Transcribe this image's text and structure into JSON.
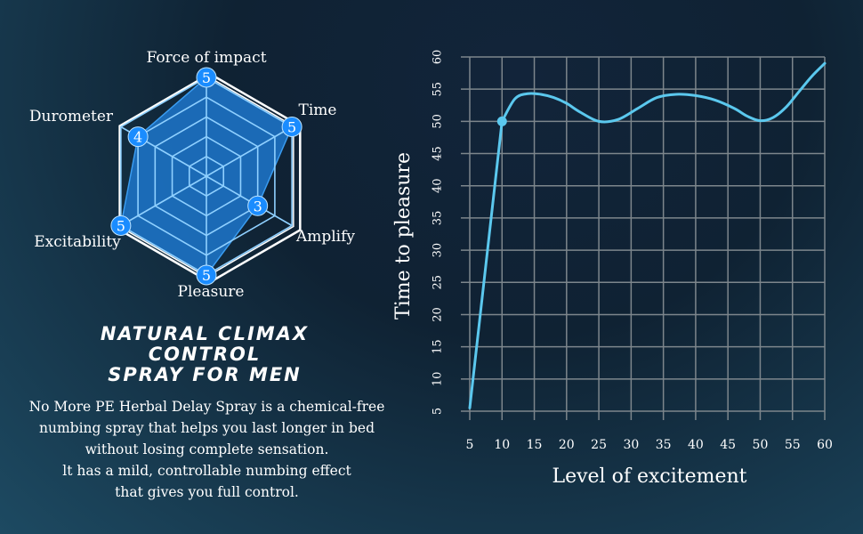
{
  "heading": {
    "line1": "NATURAL CLIMAX",
    "line2": "CONTROL",
    "line3": "SPRAY FOR MEN"
  },
  "description": {
    "line1": "No More PE Herbal Delay Spray is a chemical-free",
    "line2": "numbing spray that helps you last longer in bed",
    "line3": "without losing complete sensation.",
    "line4": "lt has a mild, controllable numbing effect",
    "line5": "that gives you full control."
  },
  "colors": {
    "radar_fill": "#1d72c4",
    "radar_grid": "#8fd0ff",
    "radar_badge": "#1a8cff",
    "line": "#5bc8ee",
    "grid": "#7d868c"
  },
  "chart_data": [
    {
      "type": "radar",
      "axes": [
        "Force of impact",
        "Time",
        "Amplify",
        "Pleasure",
        "Excitability",
        "Durometer"
      ],
      "values": [
        5,
        5,
        3,
        5,
        5,
        4
      ],
      "max": 5
    },
    {
      "type": "line",
      "xlabel": "Level of excitement",
      "ylabel": "Time to pleasure",
      "xlim": [
        5,
        60
      ],
      "ylim": [
        5,
        60
      ],
      "xticks": [
        5,
        10,
        15,
        20,
        25,
        30,
        35,
        40,
        45,
        50,
        55,
        60
      ],
      "yticks": [
        5,
        10,
        15,
        20,
        25,
        30,
        35,
        40,
        45,
        50,
        55,
        60
      ],
      "grid": true,
      "series": [
        {
          "x": [
            5,
            10,
            12,
            14,
            16,
            18,
            20,
            22,
            25,
            28,
            31,
            34,
            37,
            40,
            43,
            46,
            48,
            50,
            52,
            54,
            56,
            58,
            60
          ],
          "y": [
            5.5,
            50,
            53.5,
            54.3,
            54.2,
            53.7,
            52.8,
            51.5,
            50,
            50.3,
            52,
            53.7,
            54.2,
            54,
            53.3,
            52,
            50.8,
            50.1,
            50.6,
            52.2,
            54.6,
            57,
            59
          ]
        }
      ],
      "markers": [
        {
          "x": 10,
          "y": 50
        }
      ]
    }
  ]
}
